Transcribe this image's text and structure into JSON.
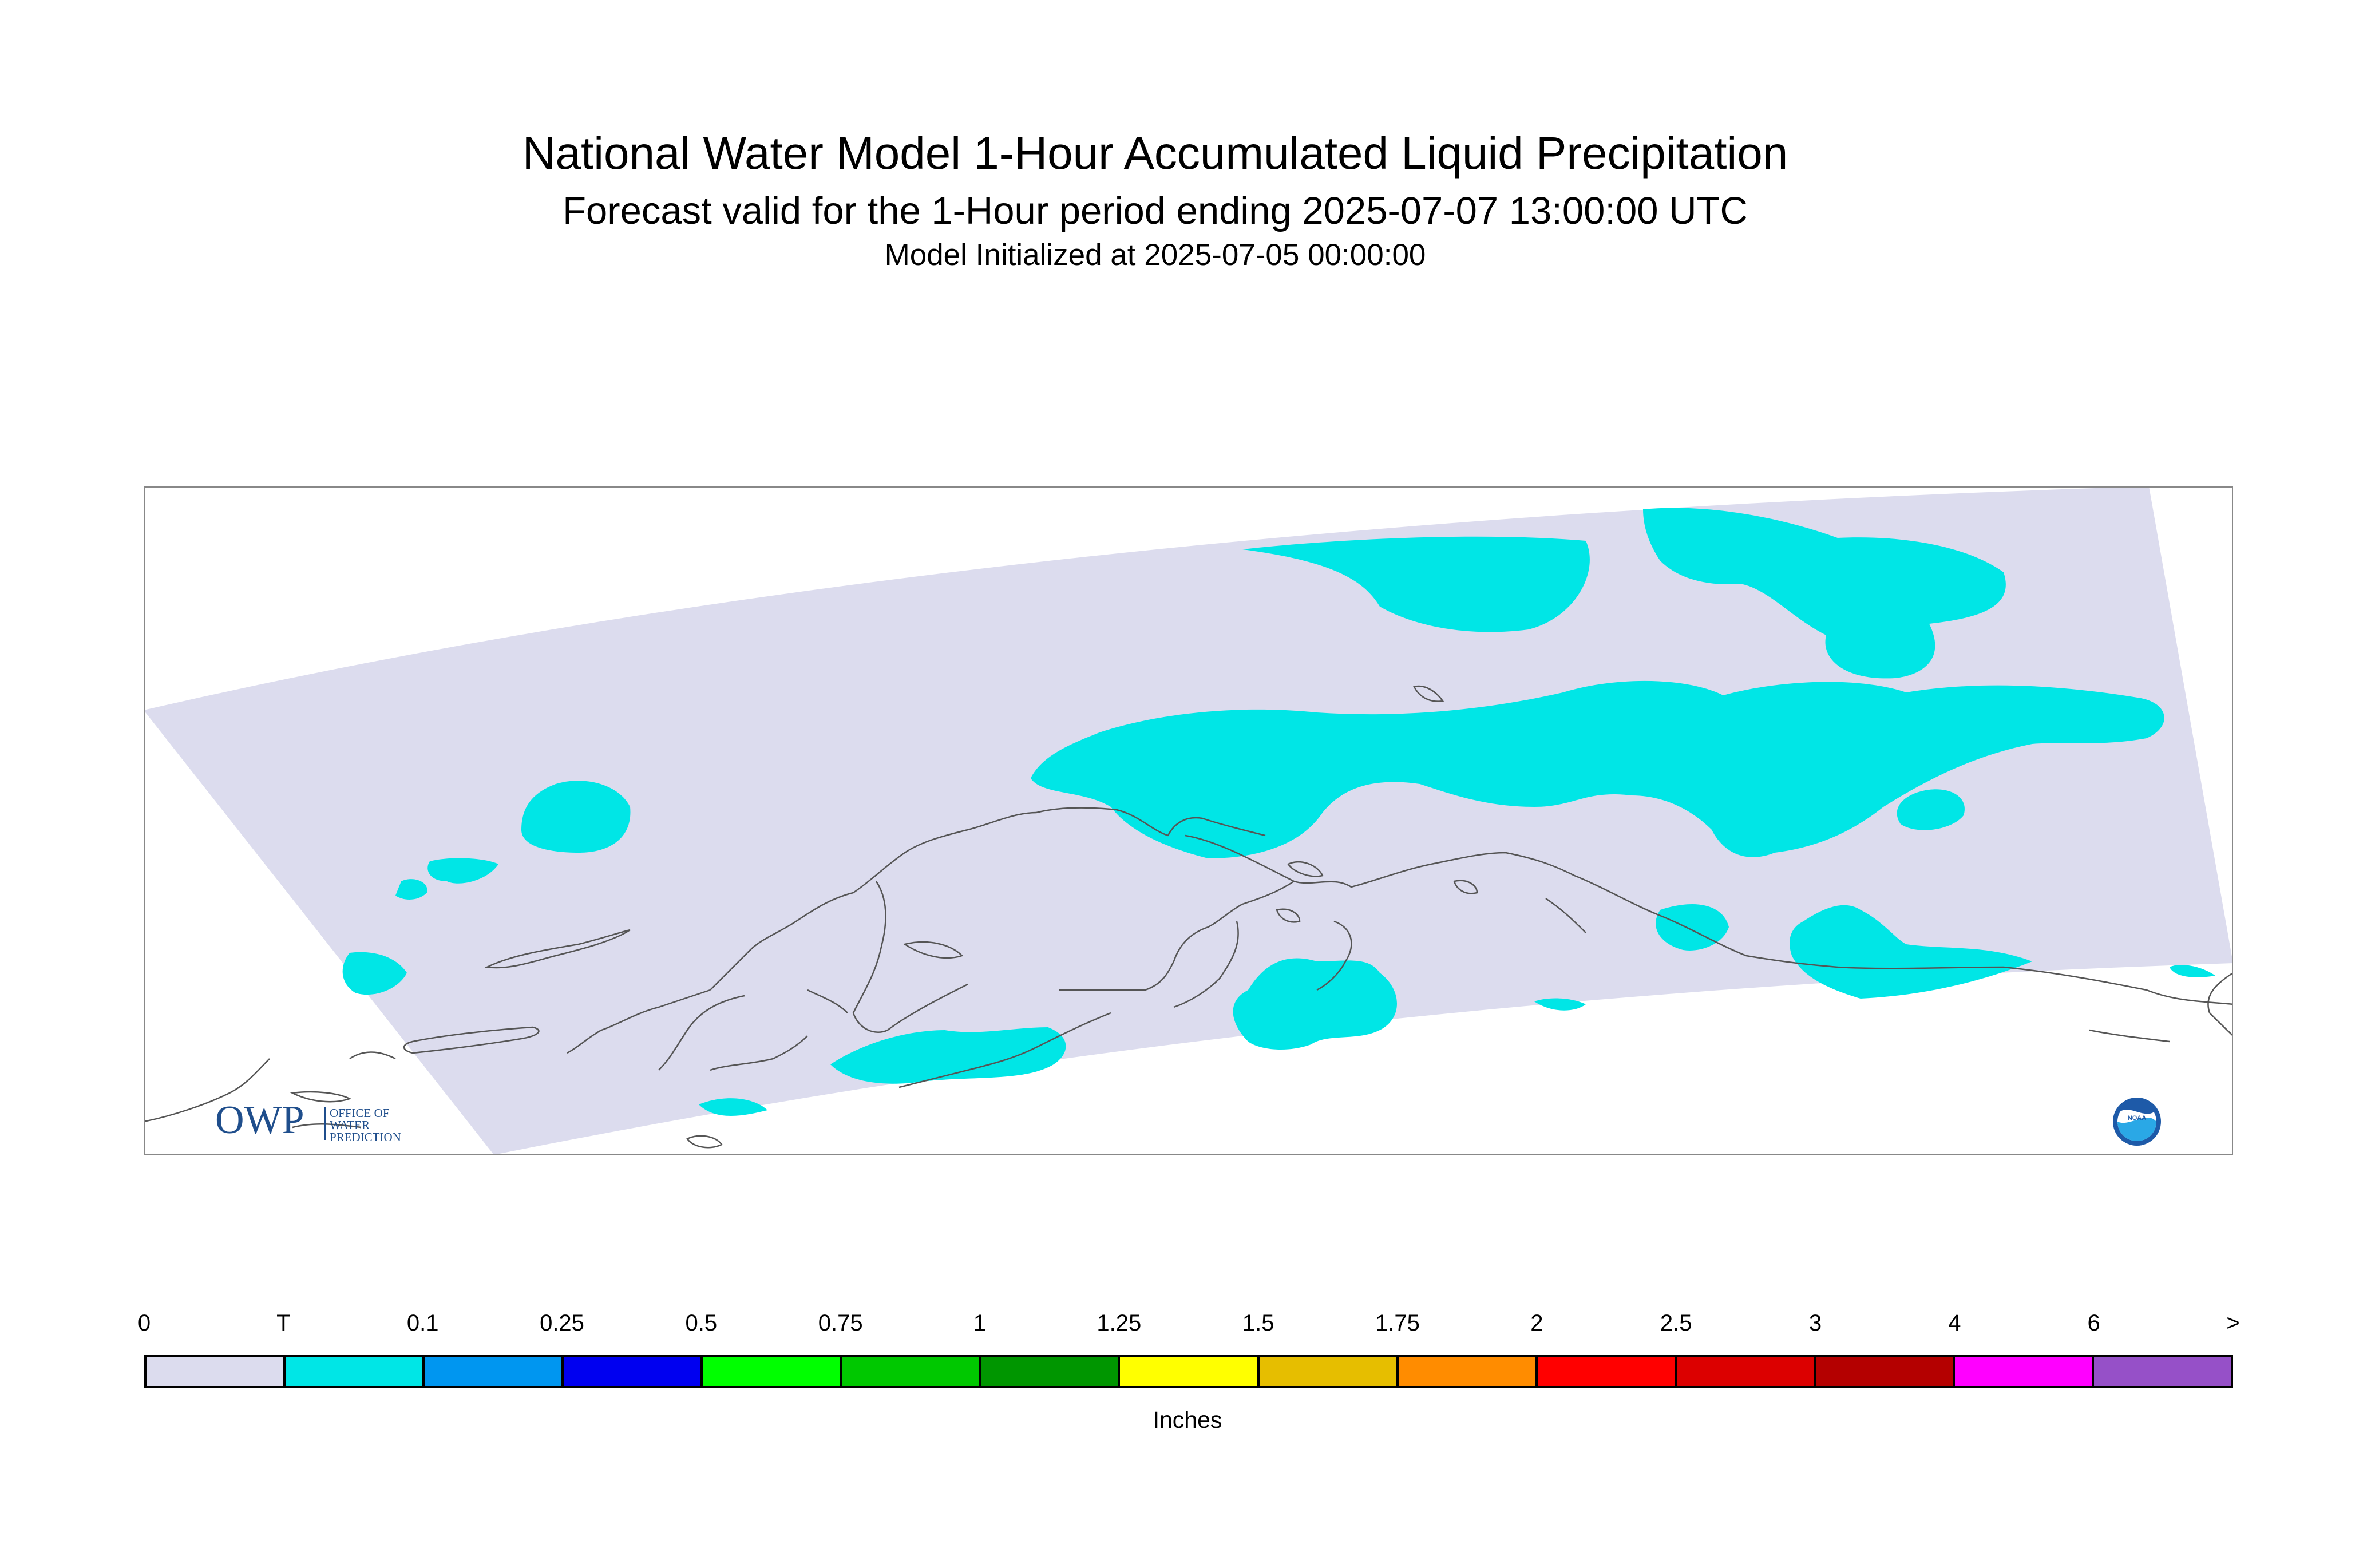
{
  "title": "National Water Model 1-Hour Accumulated Liquid Precipitation",
  "subtitle": "Forecast valid for the 1-Hour period ending 2025-07-07 13:00:00 UTC",
  "init_line": "Model Initialized at 2025-07-05 00:00:00",
  "logos": {
    "owp": {
      "mark": "OWP",
      "line1": "OFFICE OF",
      "line2": "WATER",
      "line3": "PREDICTION"
    },
    "noaa": {
      "text": "NOAA"
    }
  },
  "colors": {
    "domain_fill": "#dcdcee",
    "trace_fill": "#00e6e6",
    "coastline": "#555555",
    "owp_blue": "#1f4e8c"
  },
  "legend": {
    "units": "Inches",
    "tick_labels": [
      "0",
      "T",
      "0.1",
      "0.25",
      "0.5",
      "0.75",
      "1",
      "1.25",
      "1.5",
      "1.75",
      "2",
      "2.5",
      "3",
      "4",
      "6",
      ">"
    ],
    "colors": [
      "#dcdcee",
      "#00e6e6",
      "#0096f0",
      "#0000f0",
      "#00ff00",
      "#00c800",
      "#009600",
      "#ffff00",
      "#e6be00",
      "#ff8c00",
      "#ff0000",
      "#dc0000",
      "#b40000",
      "#ff00ff",
      "#9650c8"
    ]
  }
}
